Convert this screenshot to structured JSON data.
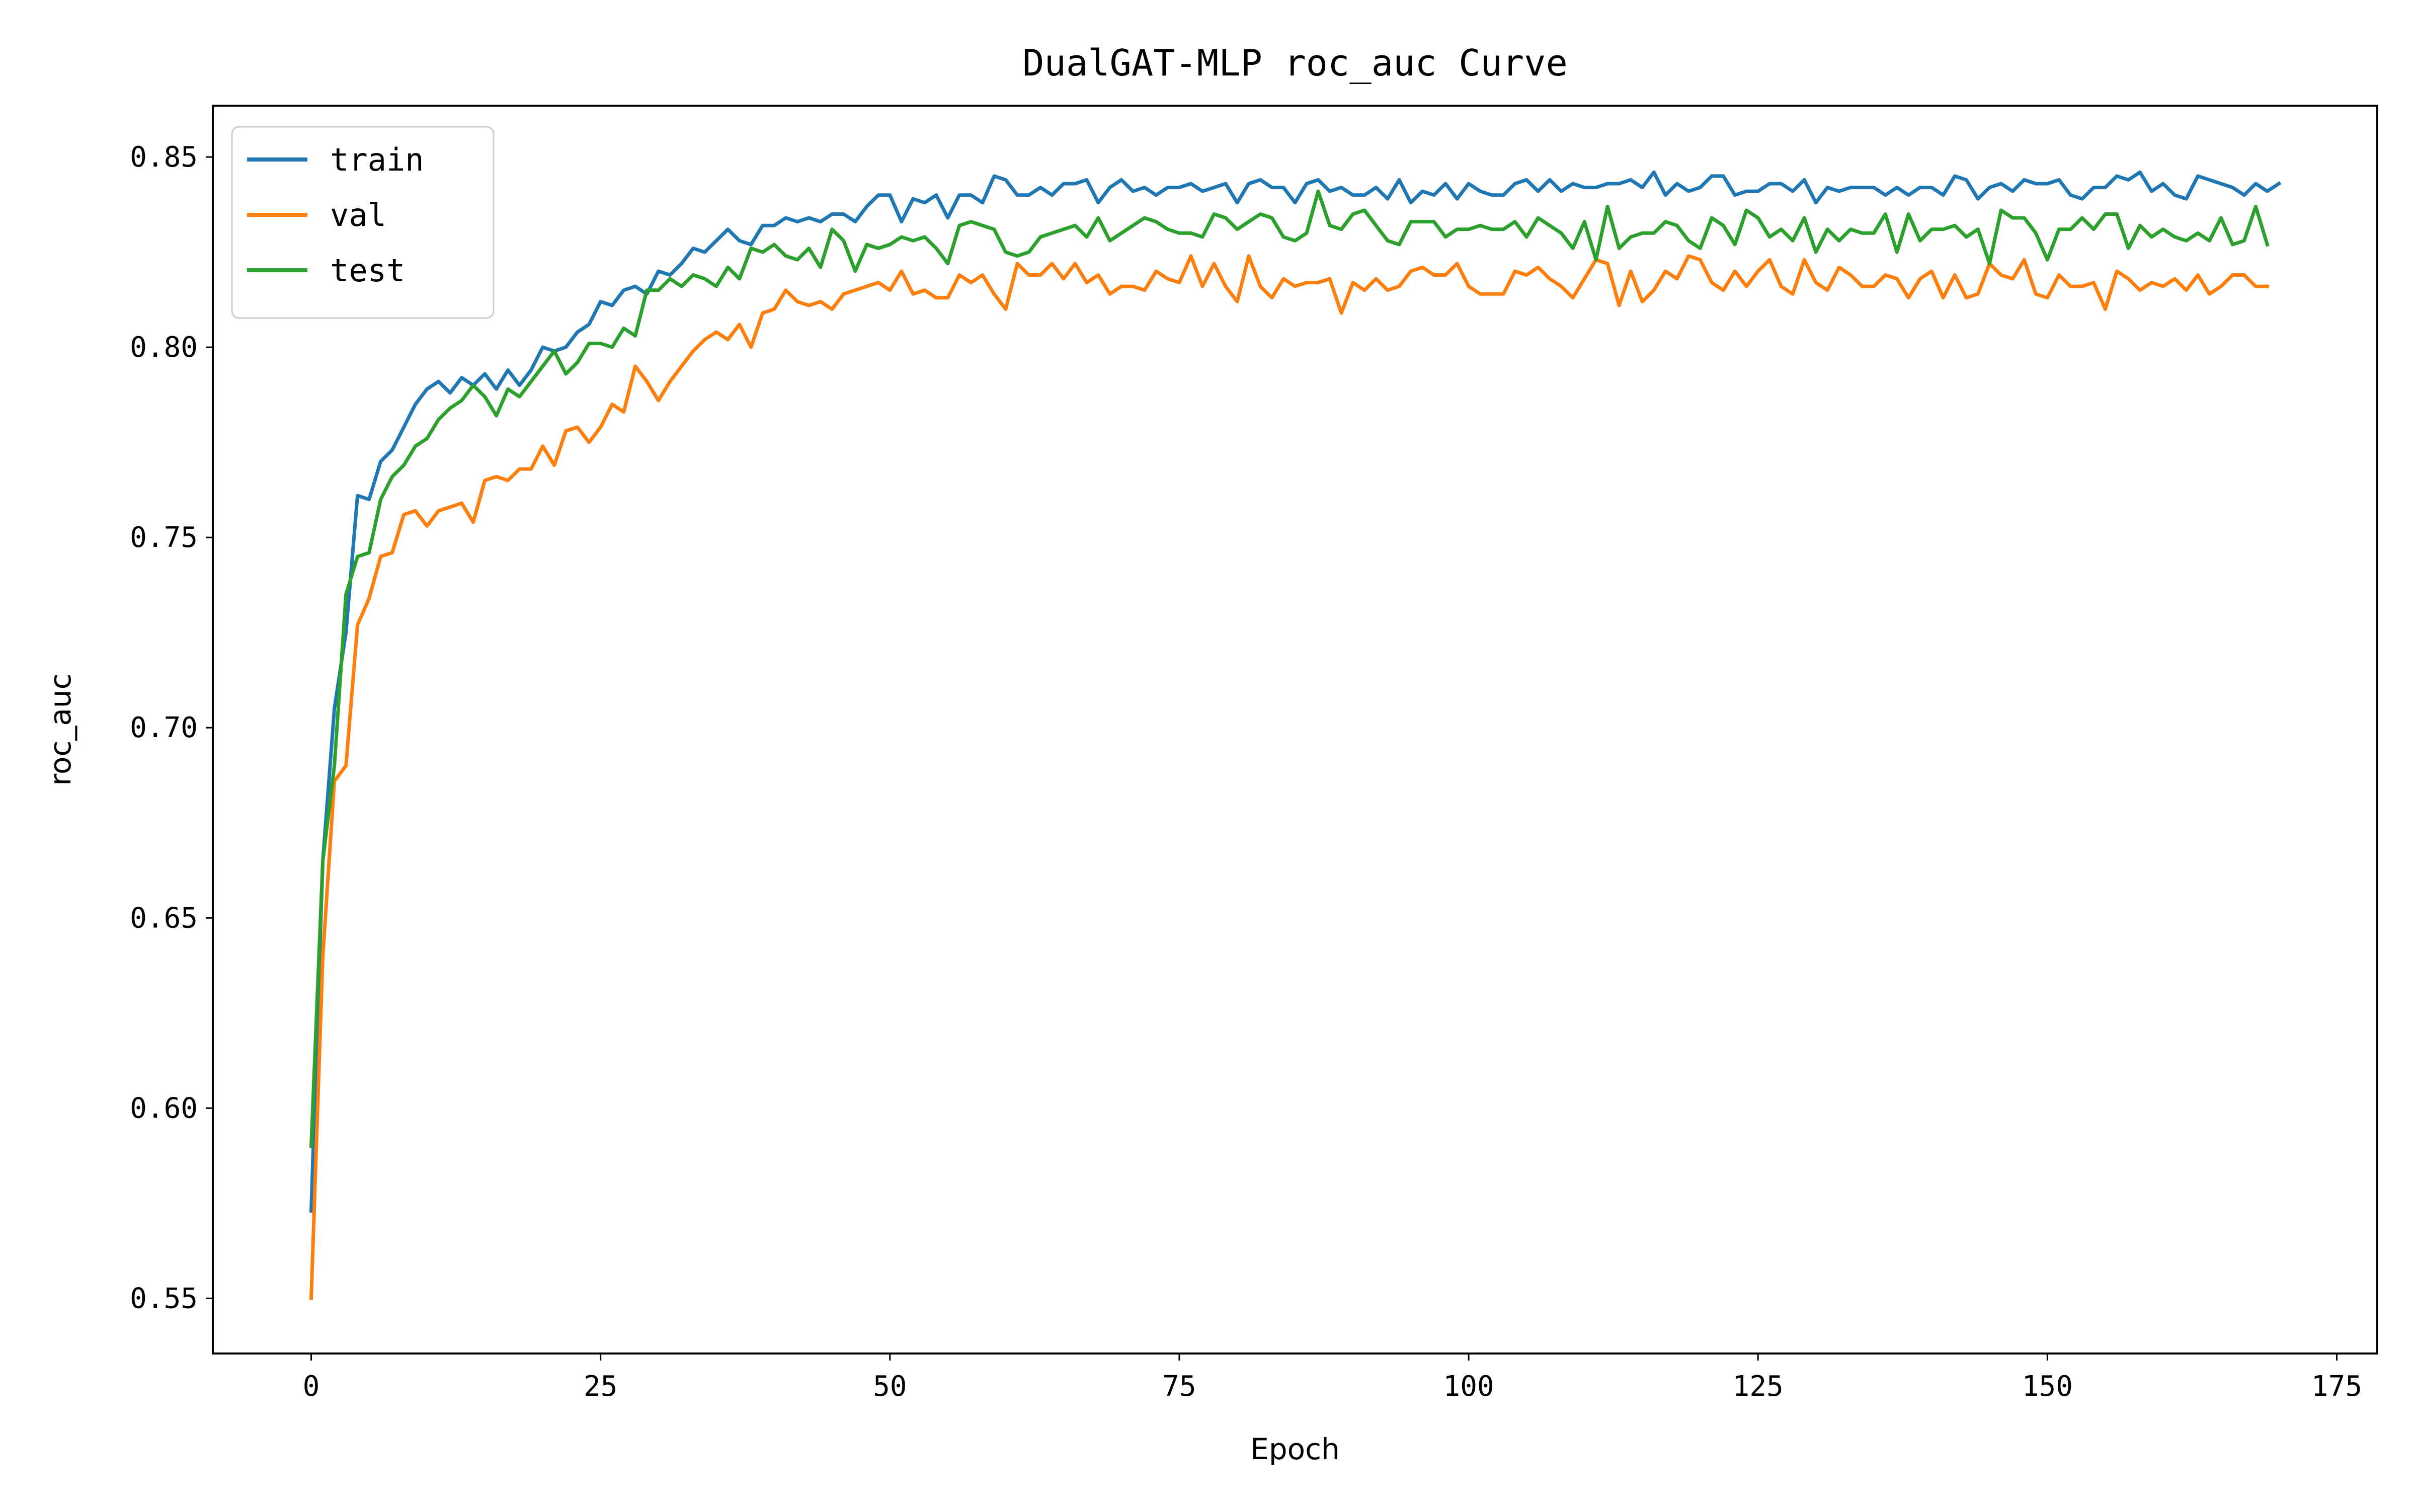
{
  "chart_data": {
    "type": "line",
    "title": "DualGAT-MLP roc_auc Curve",
    "xlabel": "Epoch",
    "ylabel": "roc_auc",
    "xlim": [
      -8.5,
      178.5
    ],
    "ylim": [
      0.5355,
      0.8635
    ],
    "xticks": [
      0,
      25,
      50,
      75,
      100,
      125,
      150,
      175
    ],
    "xtick_labels": [
      "0",
      "25",
      "50",
      "75",
      "100",
      "125",
      "150",
      "175"
    ],
    "yticks": [
      0.55,
      0.6,
      0.65,
      0.7,
      0.75,
      0.8,
      0.85
    ],
    "ytick_labels": [
      "0.55",
      "0.60",
      "0.65",
      "0.70",
      "0.75",
      "0.80",
      "0.85"
    ],
    "grid": false,
    "legend_position": "top-left",
    "series": [
      {
        "name": "train",
        "color": "#1f77b4",
        "x0": 0,
        "dx": 1,
        "values": [
          0.573,
          0.665,
          0.705,
          0.725,
          0.761,
          0.76,
          0.77,
          0.773,
          0.779,
          0.785,
          0.789,
          0.791,
          0.788,
          0.792,
          0.79,
          0.793,
          0.789,
          0.794,
          0.79,
          0.794,
          0.8,
          0.799,
          0.8,
          0.804,
          0.806,
          0.812,
          0.811,
          0.815,
          0.816,
          0.814,
          0.82,
          0.819,
          0.822,
          0.826,
          0.825,
          0.828,
          0.831,
          0.828,
          0.827,
          0.832,
          0.832,
          0.834,
          0.833,
          0.834,
          0.833,
          0.835,
          0.835,
          0.833,
          0.837,
          0.84,
          0.84,
          0.833,
          0.839,
          0.838,
          0.84,
          0.834,
          0.84,
          0.84,
          0.838,
          0.845,
          0.844,
          0.84,
          0.84,
          0.842,
          0.84,
          0.843,
          0.843,
          0.844,
          0.838,
          0.842,
          0.844,
          0.841,
          0.842,
          0.84,
          0.842,
          0.842,
          0.843,
          0.841,
          0.842,
          0.843,
          0.838,
          0.843,
          0.844,
          0.842,
          0.842,
          0.838,
          0.843,
          0.844,
          0.841,
          0.842,
          0.84,
          0.84,
          0.842,
          0.839,
          0.844,
          0.838,
          0.841,
          0.84,
          0.843,
          0.839,
          0.843,
          0.841,
          0.84,
          0.84,
          0.843,
          0.844,
          0.841,
          0.844,
          0.841,
          0.843,
          0.842,
          0.842,
          0.843,
          0.843,
          0.844,
          0.842,
          0.846,
          0.84,
          0.843,
          0.841,
          0.842,
          0.845,
          0.845,
          0.84,
          0.841,
          0.841,
          0.843,
          0.843,
          0.841,
          0.844,
          0.838,
          0.842,
          0.841,
          0.842,
          0.842,
          0.842,
          0.84,
          0.842,
          0.84,
          0.842,
          0.842,
          0.84,
          0.845,
          0.844,
          0.839,
          0.842,
          0.843,
          0.841,
          0.844,
          0.843,
          0.843,
          0.844,
          0.84,
          0.839,
          0.842,
          0.842,
          0.845,
          0.844,
          0.846,
          0.841,
          0.843,
          0.84,
          0.839,
          0.845,
          0.844,
          0.843,
          0.842,
          0.84,
          0.843,
          0.841,
          0.843
        ]
      },
      {
        "name": "val",
        "color": "#ff7f0e",
        "x0": 0,
        "dx": 1,
        "values": [
          0.55,
          0.64,
          0.686,
          0.69,
          0.727,
          0.734,
          0.745,
          0.746,
          0.756,
          0.757,
          0.753,
          0.757,
          0.758,
          0.759,
          0.754,
          0.765,
          0.766,
          0.765,
          0.768,
          0.768,
          0.774,
          0.769,
          0.778,
          0.779,
          0.775,
          0.779,
          0.785,
          0.783,
          0.795,
          0.791,
          0.786,
          0.791,
          0.795,
          0.799,
          0.802,
          0.804,
          0.802,
          0.806,
          0.8,
          0.809,
          0.81,
          0.815,
          0.812,
          0.811,
          0.812,
          0.81,
          0.814,
          0.815,
          0.816,
          0.817,
          0.815,
          0.82,
          0.814,
          0.815,
          0.813,
          0.813,
          0.819,
          0.817,
          0.819,
          0.814,
          0.81,
          0.822,
          0.819,
          0.819,
          0.822,
          0.818,
          0.822,
          0.817,
          0.819,
          0.814,
          0.816,
          0.816,
          0.815,
          0.82,
          0.818,
          0.817,
          0.824,
          0.816,
          0.822,
          0.816,
          0.812,
          0.824,
          0.816,
          0.813,
          0.818,
          0.816,
          0.817,
          0.817,
          0.818,
          0.809,
          0.817,
          0.815,
          0.818,
          0.815,
          0.816,
          0.82,
          0.821,
          0.819,
          0.819,
          0.822,
          0.816,
          0.814,
          0.814,
          0.814,
          0.82,
          0.819,
          0.821,
          0.818,
          0.816,
          0.813,
          0.818,
          0.823,
          0.822,
          0.811,
          0.82,
          0.812,
          0.815,
          0.82,
          0.818,
          0.824,
          0.823,
          0.817,
          0.815,
          0.82,
          0.816,
          0.82,
          0.823,
          0.816,
          0.814,
          0.823,
          0.817,
          0.815,
          0.821,
          0.819,
          0.816,
          0.816,
          0.819,
          0.818,
          0.813,
          0.818,
          0.82,
          0.813,
          0.819,
          0.813,
          0.814,
          0.822,
          0.819,
          0.818,
          0.823,
          0.814,
          0.813,
          0.819,
          0.816,
          0.816,
          0.817,
          0.81,
          0.82,
          0.818,
          0.815,
          0.817,
          0.816,
          0.818,
          0.815,
          0.819,
          0.814,
          0.816,
          0.819,
          0.819,
          0.816,
          0.816
        ]
      },
      {
        "name": "test",
        "color": "#2ca02c",
        "x0": 0,
        "dx": 1,
        "values": [
          0.59,
          0.665,
          0.69,
          0.735,
          0.745,
          0.746,
          0.76,
          0.766,
          0.769,
          0.774,
          0.776,
          0.781,
          0.784,
          0.786,
          0.79,
          0.787,
          0.782,
          0.789,
          0.787,
          0.791,
          0.795,
          0.799,
          0.793,
          0.796,
          0.801,
          0.801,
          0.8,
          0.805,
          0.803,
          0.815,
          0.815,
          0.818,
          0.816,
          0.819,
          0.818,
          0.816,
          0.821,
          0.818,
          0.826,
          0.825,
          0.827,
          0.824,
          0.823,
          0.826,
          0.821,
          0.831,
          0.828,
          0.82,
          0.827,
          0.826,
          0.827,
          0.829,
          0.828,
          0.829,
          0.826,
          0.822,
          0.832,
          0.833,
          0.832,
          0.831,
          0.825,
          0.824,
          0.825,
          0.829,
          0.83,
          0.831,
          0.832,
          0.829,
          0.834,
          0.828,
          0.83,
          0.832,
          0.834,
          0.833,
          0.831,
          0.83,
          0.83,
          0.829,
          0.835,
          0.834,
          0.831,
          0.833,
          0.835,
          0.834,
          0.829,
          0.828,
          0.83,
          0.841,
          0.832,
          0.831,
          0.835,
          0.836,
          0.832,
          0.828,
          0.827,
          0.833,
          0.833,
          0.833,
          0.829,
          0.831,
          0.831,
          0.832,
          0.831,
          0.831,
          0.833,
          0.829,
          0.834,
          0.832,
          0.83,
          0.826,
          0.833,
          0.823,
          0.837,
          0.826,
          0.829,
          0.83,
          0.83,
          0.833,
          0.832,
          0.828,
          0.826,
          0.834,
          0.832,
          0.827,
          0.836,
          0.834,
          0.829,
          0.831,
          0.828,
          0.834,
          0.825,
          0.831,
          0.828,
          0.831,
          0.83,
          0.83,
          0.835,
          0.825,
          0.835,
          0.828,
          0.831,
          0.831,
          0.832,
          0.829,
          0.831,
          0.822,
          0.836,
          0.834,
          0.834,
          0.83,
          0.823,
          0.831,
          0.831,
          0.834,
          0.831,
          0.835,
          0.835,
          0.826,
          0.832,
          0.829,
          0.831,
          0.829,
          0.828,
          0.83,
          0.828,
          0.834,
          0.827,
          0.828,
          0.837,
          0.827
        ]
      }
    ]
  }
}
